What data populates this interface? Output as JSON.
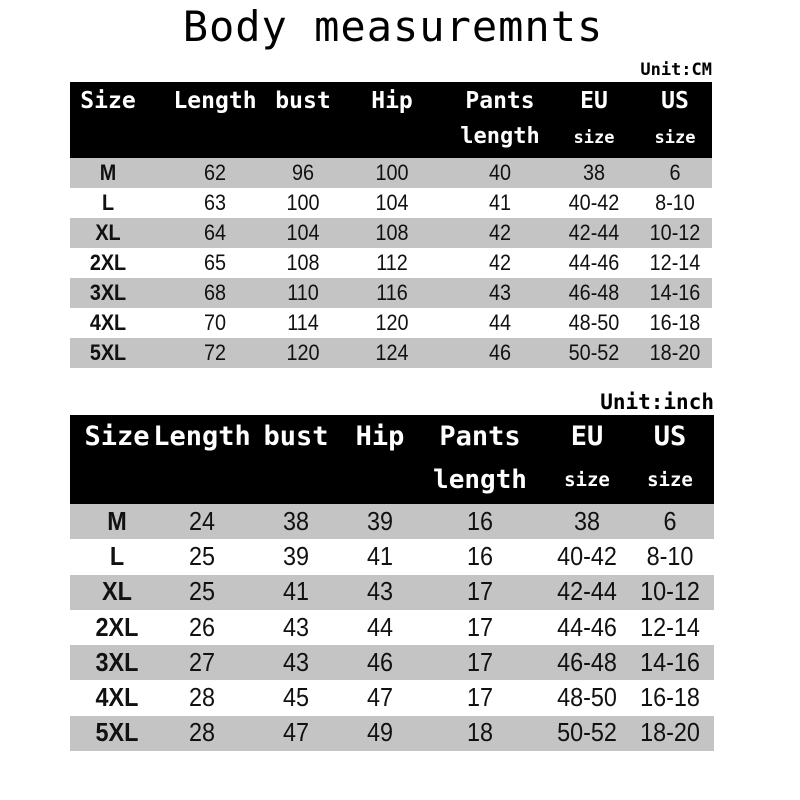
{
  "title": "Body measuremnts",
  "tables": [
    {
      "unit": "Unit:CM",
      "headers": [
        {
          "line1": "Size",
          "line2": ""
        },
        {
          "line1": "Length",
          "line2": ""
        },
        {
          "line1": "bust",
          "line2": ""
        },
        {
          "line1": "Hip",
          "line2": ""
        },
        {
          "line1": "Pants",
          "line2": "length"
        },
        {
          "line1": "EU",
          "line2": "size"
        },
        {
          "line1": "US",
          "line2": "size"
        }
      ],
      "rows": [
        [
          "M",
          "62",
          "96",
          "100",
          "40",
          "38",
          "6"
        ],
        [
          "L",
          "63",
          "100",
          "104",
          "41",
          "40-42",
          "8-10"
        ],
        [
          "XL",
          "64",
          "104",
          "108",
          "42",
          "42-44",
          "10-12"
        ],
        [
          "2XL",
          "65",
          "108",
          "112",
          "42",
          "44-46",
          "12-14"
        ],
        [
          "3XL",
          "68",
          "110",
          "116",
          "43",
          "46-48",
          "14-16"
        ],
        [
          "4XL",
          "70",
          "114",
          "120",
          "44",
          "48-50",
          "16-18"
        ],
        [
          "5XL",
          "72",
          "120",
          "124",
          "46",
          "50-52",
          "18-20"
        ]
      ]
    },
    {
      "unit": "Unit:inch",
      "headers": [
        {
          "line1": "Size",
          "line2": ""
        },
        {
          "line1": "Length",
          "line2": ""
        },
        {
          "line1": "bust",
          "line2": ""
        },
        {
          "line1": "Hip",
          "line2": ""
        },
        {
          "line1": "Pants",
          "line2": "length"
        },
        {
          "line1": "EU",
          "line2": "size"
        },
        {
          "line1": "US",
          "line2": "size"
        }
      ],
      "rows": [
        [
          "M",
          "24",
          "38",
          "39",
          "16",
          "38",
          "6"
        ],
        [
          "L",
          "25",
          "39",
          "41",
          "16",
          "40-42",
          "8-10"
        ],
        [
          "XL",
          "25",
          "41",
          "43",
          "17",
          "42-44",
          "10-12"
        ],
        [
          "2XL",
          "26",
          "43",
          "44",
          "17",
          "44-46",
          "12-14"
        ],
        [
          "3XL",
          "27",
          "43",
          "46",
          "17",
          "46-48",
          "14-16"
        ],
        [
          "4XL",
          "28",
          "45",
          "47",
          "17",
          "48-50",
          "16-18"
        ],
        [
          "5XL",
          "28",
          "47",
          "49",
          "18",
          "50-52",
          "18-20"
        ]
      ]
    }
  ],
  "colors": {
    "header_bg": "#000000",
    "header_text": "#ffffff",
    "stripe": "#c4c4c4"
  }
}
